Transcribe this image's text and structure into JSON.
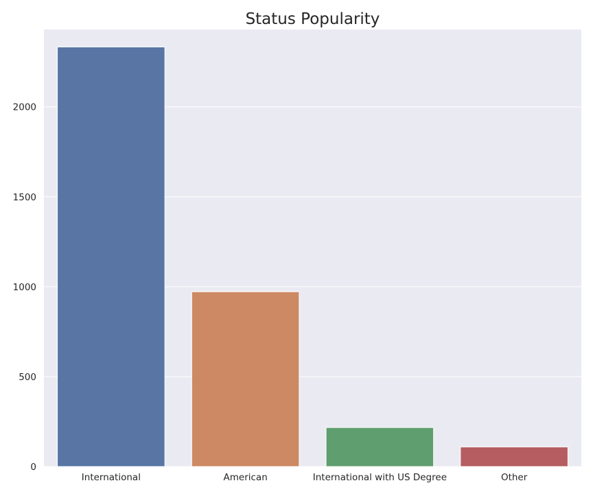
{
  "chart_data": {
    "type": "bar",
    "title": "Status Popularity",
    "xlabel": "",
    "ylabel": "",
    "categories": [
      "International",
      "American",
      "International with US Degree",
      "Other"
    ],
    "values": [
      2333,
      972,
      217,
      109
    ],
    "colors": [
      "#5875a4",
      "#cc8963",
      "#5f9e6e",
      "#b55d60"
    ],
    "ylim": [
      0,
      2430
    ],
    "yticks": [
      0,
      500,
      1000,
      1500,
      2000
    ],
    "grid": true,
    "legend": "none",
    "background": "#eaeaf2",
    "grid_color": "#ffffff"
  }
}
